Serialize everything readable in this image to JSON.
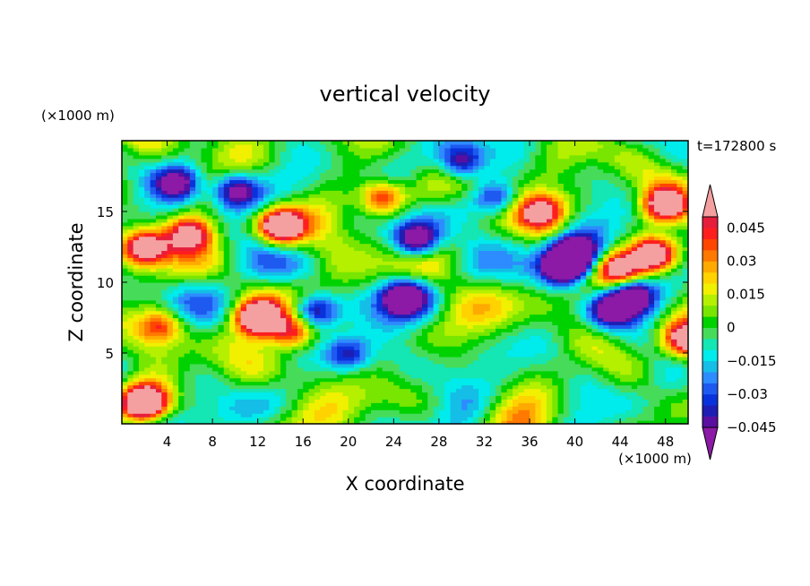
{
  "chart_data": {
    "type": "heatmap",
    "title": "vertical velocity",
    "xlabel": "X coordinate",
    "ylabel": "Z coordinate",
    "x_unit": "(×1000 m)",
    "y_unit": "(×1000 m)",
    "time_label": "t=172800 s",
    "xlim": [
      0,
      50
    ],
    "ylim": [
      0,
      20
    ],
    "x_ticks": [
      4,
      8,
      12,
      16,
      20,
      24,
      28,
      32,
      36,
      40,
      44,
      48
    ],
    "y_ticks": [
      5,
      10,
      15
    ],
    "colorbar": {
      "levels": [
        -0.05,
        -0.045,
        -0.04,
        -0.035,
        -0.03,
        -0.025,
        -0.02,
        -0.015,
        -0.01,
        -0.005,
        0,
        0.005,
        0.01,
        0.015,
        0.02,
        0.025,
        0.03,
        0.035,
        0.04,
        0.045,
        0.05
      ],
      "tick_labels": [
        "0.045",
        "0.03",
        "0.015",
        "0",
        "−0.015",
        "−0.03",
        "−0.045"
      ],
      "tick_values": [
        0.045,
        0.03,
        0.015,
        0,
        -0.015,
        -0.03,
        -0.045
      ],
      "colors": [
        "#8c1aa6",
        "#5a0fa0",
        "#1e1eb4",
        "#0a32dc",
        "#1e5af0",
        "#2d8cff",
        "#14bee6",
        "#00ebeb",
        "#14e6b4",
        "#46dc5a",
        "#00d200",
        "#78e600",
        "#b4f000",
        "#f0f000",
        "#ffd200",
        "#ffaa00",
        "#ff7800",
        "#ff4600",
        "#ff1e1e",
        "#e61e3c",
        "#f5a0a0"
      ],
      "extend": "both"
    }
  }
}
